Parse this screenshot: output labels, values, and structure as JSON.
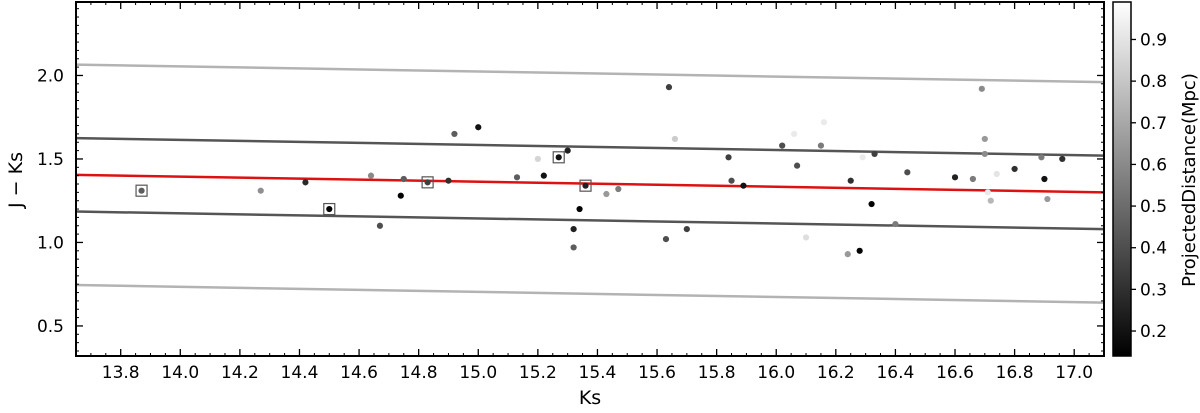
{
  "chart_data": {
    "type": "scatter",
    "xlabel": "Ks",
    "ylabel": "J − Ks",
    "xlim": [
      13.65,
      17.1
    ],
    "ylim": [
      0.32,
      2.44
    ],
    "x_ticks": [
      "13.8",
      "14.0",
      "14.2",
      "14.4",
      "14.6",
      "14.8",
      "15.0",
      "15.2",
      "15.4",
      "15.6",
      "15.8",
      "16.0",
      "16.2",
      "16.4",
      "16.6",
      "16.8",
      "17.0"
    ],
    "y_ticks": [
      "0.5",
      "1.0",
      "1.5",
      "2.0"
    ],
    "grid": false,
    "colorbar": {
      "label": "ProjectedDistance(Mpc)",
      "range": [
        0.14,
        0.99
      ],
      "ticks": [
        "0.2",
        "0.3",
        "0.4",
        "0.5",
        "0.6",
        "0.7",
        "0.8",
        "0.9"
      ],
      "colormap": "gray"
    },
    "lines": [
      {
        "role": "fit",
        "color": "#dd1111",
        "x": [
          13.65,
          17.1
        ],
        "y": [
          1.405,
          1.3
        ]
      },
      {
        "role": "inner-band-upper",
        "color": "#555555",
        "x": [
          13.65,
          17.1
        ],
        "y": [
          1.625,
          1.52
        ]
      },
      {
        "role": "inner-band-lower",
        "color": "#555555",
        "x": [
          13.65,
          17.1
        ],
        "y": [
          1.185,
          1.08
        ]
      },
      {
        "role": "outer-band-upper",
        "color": "#b3b3b3",
        "x": [
          13.65,
          17.1
        ],
        "y": [
          2.065,
          1.96
        ]
      },
      {
        "role": "outer-band-lower",
        "color": "#b3b3b3",
        "x": [
          13.65,
          17.1
        ],
        "y": [
          0.745,
          0.64
        ]
      }
    ],
    "points": [
      {
        "x": 13.87,
        "y": 1.31,
        "d": 0.45,
        "boxed": true
      },
      {
        "x": 14.27,
        "y": 1.31,
        "d": 0.62
      },
      {
        "x": 14.42,
        "y": 1.36,
        "d": 0.28
      },
      {
        "x": 14.5,
        "y": 1.2,
        "d": 0.15,
        "boxed": true
      },
      {
        "x": 14.64,
        "y": 1.4,
        "d": 0.6
      },
      {
        "x": 14.67,
        "y": 1.1,
        "d": 0.4
      },
      {
        "x": 14.74,
        "y": 1.28,
        "d": 0.15
      },
      {
        "x": 14.75,
        "y": 1.38,
        "d": 0.45
      },
      {
        "x": 14.83,
        "y": 1.36,
        "d": 0.35,
        "boxed": true
      },
      {
        "x": 14.9,
        "y": 1.37,
        "d": 0.3
      },
      {
        "x": 14.92,
        "y": 1.65,
        "d": 0.45
      },
      {
        "x": 15.0,
        "y": 1.69,
        "d": 0.2
      },
      {
        "x": 15.13,
        "y": 1.39,
        "d": 0.45
      },
      {
        "x": 15.2,
        "y": 1.5,
        "d": 0.85
      },
      {
        "x": 15.22,
        "y": 1.4,
        "d": 0.2
      },
      {
        "x": 15.27,
        "y": 1.51,
        "d": 0.2,
        "boxed": true
      },
      {
        "x": 15.3,
        "y": 1.55,
        "d": 0.25
      },
      {
        "x": 15.32,
        "y": 1.08,
        "d": 0.25
      },
      {
        "x": 15.32,
        "y": 0.97,
        "d": 0.45
      },
      {
        "x": 15.34,
        "y": 1.2,
        "d": 0.15
      },
      {
        "x": 15.36,
        "y": 1.34,
        "d": 0.25,
        "boxed": true
      },
      {
        "x": 15.43,
        "y": 1.29,
        "d": 0.65
      },
      {
        "x": 15.47,
        "y": 1.32,
        "d": 0.55
      },
      {
        "x": 15.63,
        "y": 1.02,
        "d": 0.4
      },
      {
        "x": 15.64,
        "y": 1.93,
        "d": 0.35
      },
      {
        "x": 15.66,
        "y": 1.62,
        "d": 0.82
      },
      {
        "x": 15.7,
        "y": 1.08,
        "d": 0.35
      },
      {
        "x": 15.84,
        "y": 1.51,
        "d": 0.35
      },
      {
        "x": 15.85,
        "y": 1.37,
        "d": 0.4
      },
      {
        "x": 15.89,
        "y": 1.34,
        "d": 0.2
      },
      {
        "x": 16.02,
        "y": 1.58,
        "d": 0.4
      },
      {
        "x": 16.06,
        "y": 1.65,
        "d": 0.92
      },
      {
        "x": 16.07,
        "y": 1.46,
        "d": 0.4
      },
      {
        "x": 16.1,
        "y": 1.03,
        "d": 0.88
      },
      {
        "x": 16.15,
        "y": 1.58,
        "d": 0.55
      },
      {
        "x": 16.16,
        "y": 1.72,
        "d": 0.92
      },
      {
        "x": 16.24,
        "y": 0.93,
        "d": 0.65
      },
      {
        "x": 16.25,
        "y": 1.37,
        "d": 0.3
      },
      {
        "x": 16.28,
        "y": 0.95,
        "d": 0.15
      },
      {
        "x": 16.29,
        "y": 1.51,
        "d": 0.92
      },
      {
        "x": 16.32,
        "y": 1.23,
        "d": 0.15
      },
      {
        "x": 16.33,
        "y": 1.53,
        "d": 0.35
      },
      {
        "x": 16.4,
        "y": 1.11,
        "d": 0.55
      },
      {
        "x": 16.44,
        "y": 1.42,
        "d": 0.4
      },
      {
        "x": 16.6,
        "y": 1.39,
        "d": 0.25
      },
      {
        "x": 16.66,
        "y": 1.38,
        "d": 0.55
      },
      {
        "x": 16.69,
        "y": 1.92,
        "d": 0.6
      },
      {
        "x": 16.7,
        "y": 1.62,
        "d": 0.65
      },
      {
        "x": 16.7,
        "y": 1.53,
        "d": 0.6
      },
      {
        "x": 16.71,
        "y": 1.3,
        "d": 0.92
      },
      {
        "x": 16.72,
        "y": 1.25,
        "d": 0.75
      },
      {
        "x": 16.74,
        "y": 1.41,
        "d": 0.9
      },
      {
        "x": 16.8,
        "y": 1.44,
        "d": 0.3
      },
      {
        "x": 16.89,
        "y": 1.51,
        "d": 0.55
      },
      {
        "x": 16.9,
        "y": 1.38,
        "d": 0.2
      },
      {
        "x": 16.91,
        "y": 1.26,
        "d": 0.65
      },
      {
        "x": 16.96,
        "y": 1.5,
        "d": 0.3
      }
    ]
  }
}
